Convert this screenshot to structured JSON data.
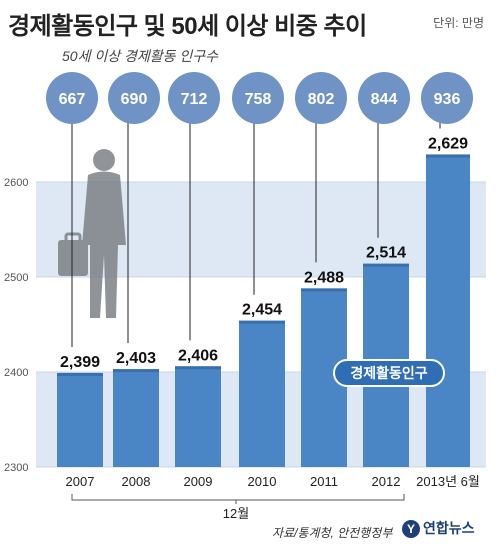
{
  "header": {
    "title": "경제활동인구 및 50세 이상 비중 추이",
    "unit": "단위: 만명",
    "subtitle": "50세 이상 경제활동 인구수"
  },
  "footer": {
    "source": "자료/통계청, 안전행정부",
    "logo_mark": "Y",
    "logo_text": "연합뉴스"
  },
  "chart_data": {
    "type": "bar",
    "categories": [
      "2007",
      "2008",
      "2009",
      "2010",
      "2011",
      "2012",
      "2013년 6월"
    ],
    "series": [
      {
        "name": "경제활동인구",
        "values": [
          2399,
          2403,
          2406,
          2454,
          2488,
          2514,
          2629
        ]
      },
      {
        "name": "50세 이상 경제활동 인구수",
        "values": [
          667,
          690,
          712,
          758,
          802,
          844,
          936
        ]
      }
    ],
    "ylim": [
      2300,
      2650
    ],
    "yticks": [
      2300,
      2400,
      2500,
      2600
    ],
    "value_labels": [
      "2,399",
      "2,403",
      "2,406",
      "2,454",
      "2,488",
      "2,514",
      "2,629"
    ],
    "circle_labels": [
      "667",
      "690",
      "712",
      "758",
      "802",
      "844",
      "936"
    ],
    "bracket_label": "12월",
    "series_label": "경제활동인구",
    "colors": {
      "bar": "#4a86c6",
      "bar_top": "#3a6fae",
      "circle": "#6f93c4",
      "band": "#dde8f4",
      "label_box": "#2f6db5"
    }
  }
}
